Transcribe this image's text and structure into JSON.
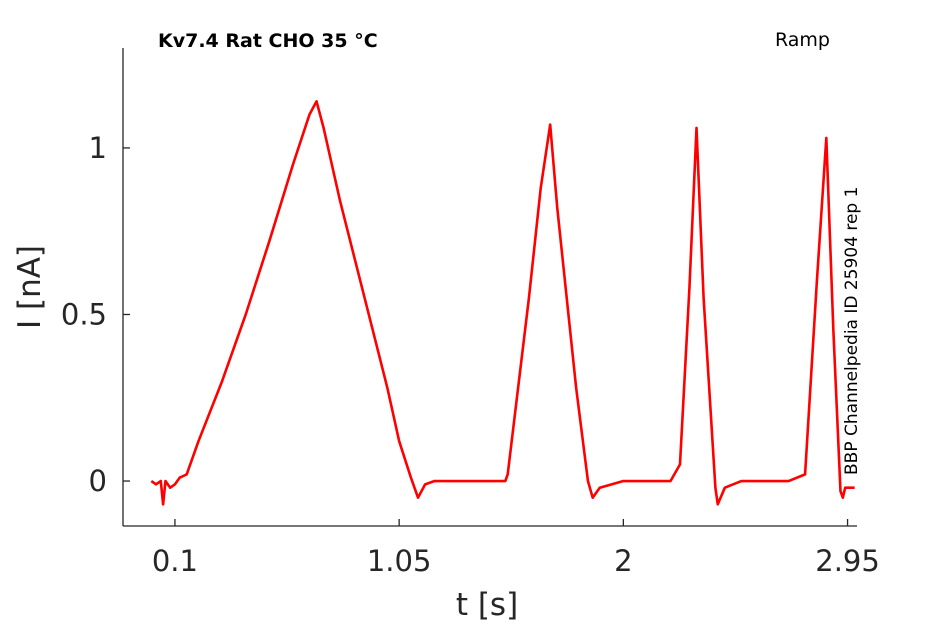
{
  "chart_data": {
    "type": "line",
    "title": "Kv7.4  Rat  CHO  35 °C",
    "protocol_label": "Ramp",
    "side_label": "BBP Channelpedia ID 25904 rep 1",
    "xlabel": "t [s]",
    "ylabel": "I [nA]",
    "xlim": [
      -0.12,
      2.99
    ],
    "ylim": [
      -0.135,
      1.3
    ],
    "x_ticks": [
      0.1,
      1.05,
      2,
      2.95
    ],
    "x_tick_labels": [
      "0.1",
      "1.05",
      "2",
      "2.95"
    ],
    "y_ticks": [
      0,
      0.5,
      1
    ],
    "y_tick_labels": [
      "0",
      "0.5",
      "1"
    ],
    "grid": false,
    "legend": "none",
    "series": [
      {
        "color": "#ff0000",
        "points": [
          [
            0.0,
            0.0
          ],
          [
            0.02,
            -0.01
          ],
          [
            0.04,
            0.0
          ],
          [
            0.05,
            -0.07
          ],
          [
            0.06,
            0.0
          ],
          [
            0.08,
            -0.02
          ],
          [
            0.1,
            -0.01
          ],
          [
            0.12,
            0.01
          ],
          [
            0.15,
            0.02
          ],
          [
            0.2,
            0.12
          ],
          [
            0.3,
            0.3
          ],
          [
            0.4,
            0.5
          ],
          [
            0.5,
            0.72
          ],
          [
            0.6,
            0.95
          ],
          [
            0.67,
            1.1
          ],
          [
            0.7,
            1.14
          ],
          [
            0.73,
            1.06
          ],
          [
            0.8,
            0.84
          ],
          [
            0.9,
            0.56
          ],
          [
            1.0,
            0.28
          ],
          [
            1.05,
            0.12
          ],
          [
            1.1,
            0.01
          ],
          [
            1.13,
            -0.05
          ],
          [
            1.16,
            -0.01
          ],
          [
            1.2,
            0.0
          ],
          [
            1.3,
            0.0
          ],
          [
            1.4,
            0.0
          ],
          [
            1.5,
            0.0
          ],
          [
            1.51,
            0.02
          ],
          [
            1.6,
            0.55
          ],
          [
            1.65,
            0.88
          ],
          [
            1.69,
            1.07
          ],
          [
            1.72,
            0.82
          ],
          [
            1.8,
            0.28
          ],
          [
            1.85,
            0.0
          ],
          [
            1.87,
            -0.05
          ],
          [
            1.9,
            -0.02
          ],
          [
            2.0,
            0.0
          ],
          [
            2.1,
            0.0
          ],
          [
            2.2,
            0.0
          ],
          [
            2.24,
            0.05
          ],
          [
            2.28,
            0.58
          ],
          [
            2.31,
            1.06
          ],
          [
            2.34,
            0.55
          ],
          [
            2.39,
            -0.02
          ],
          [
            2.4,
            -0.07
          ],
          [
            2.43,
            -0.02
          ],
          [
            2.5,
            0.0
          ],
          [
            2.6,
            0.0
          ],
          [
            2.7,
            0.0
          ],
          [
            2.77,
            0.02
          ],
          [
            2.82,
            0.6
          ],
          [
            2.86,
            1.03
          ],
          [
            2.89,
            0.45
          ],
          [
            2.92,
            -0.03
          ],
          [
            2.93,
            -0.05
          ],
          [
            2.94,
            -0.02
          ],
          [
            2.96,
            -0.02
          ],
          [
            2.98,
            -0.02
          ]
        ]
      }
    ]
  }
}
